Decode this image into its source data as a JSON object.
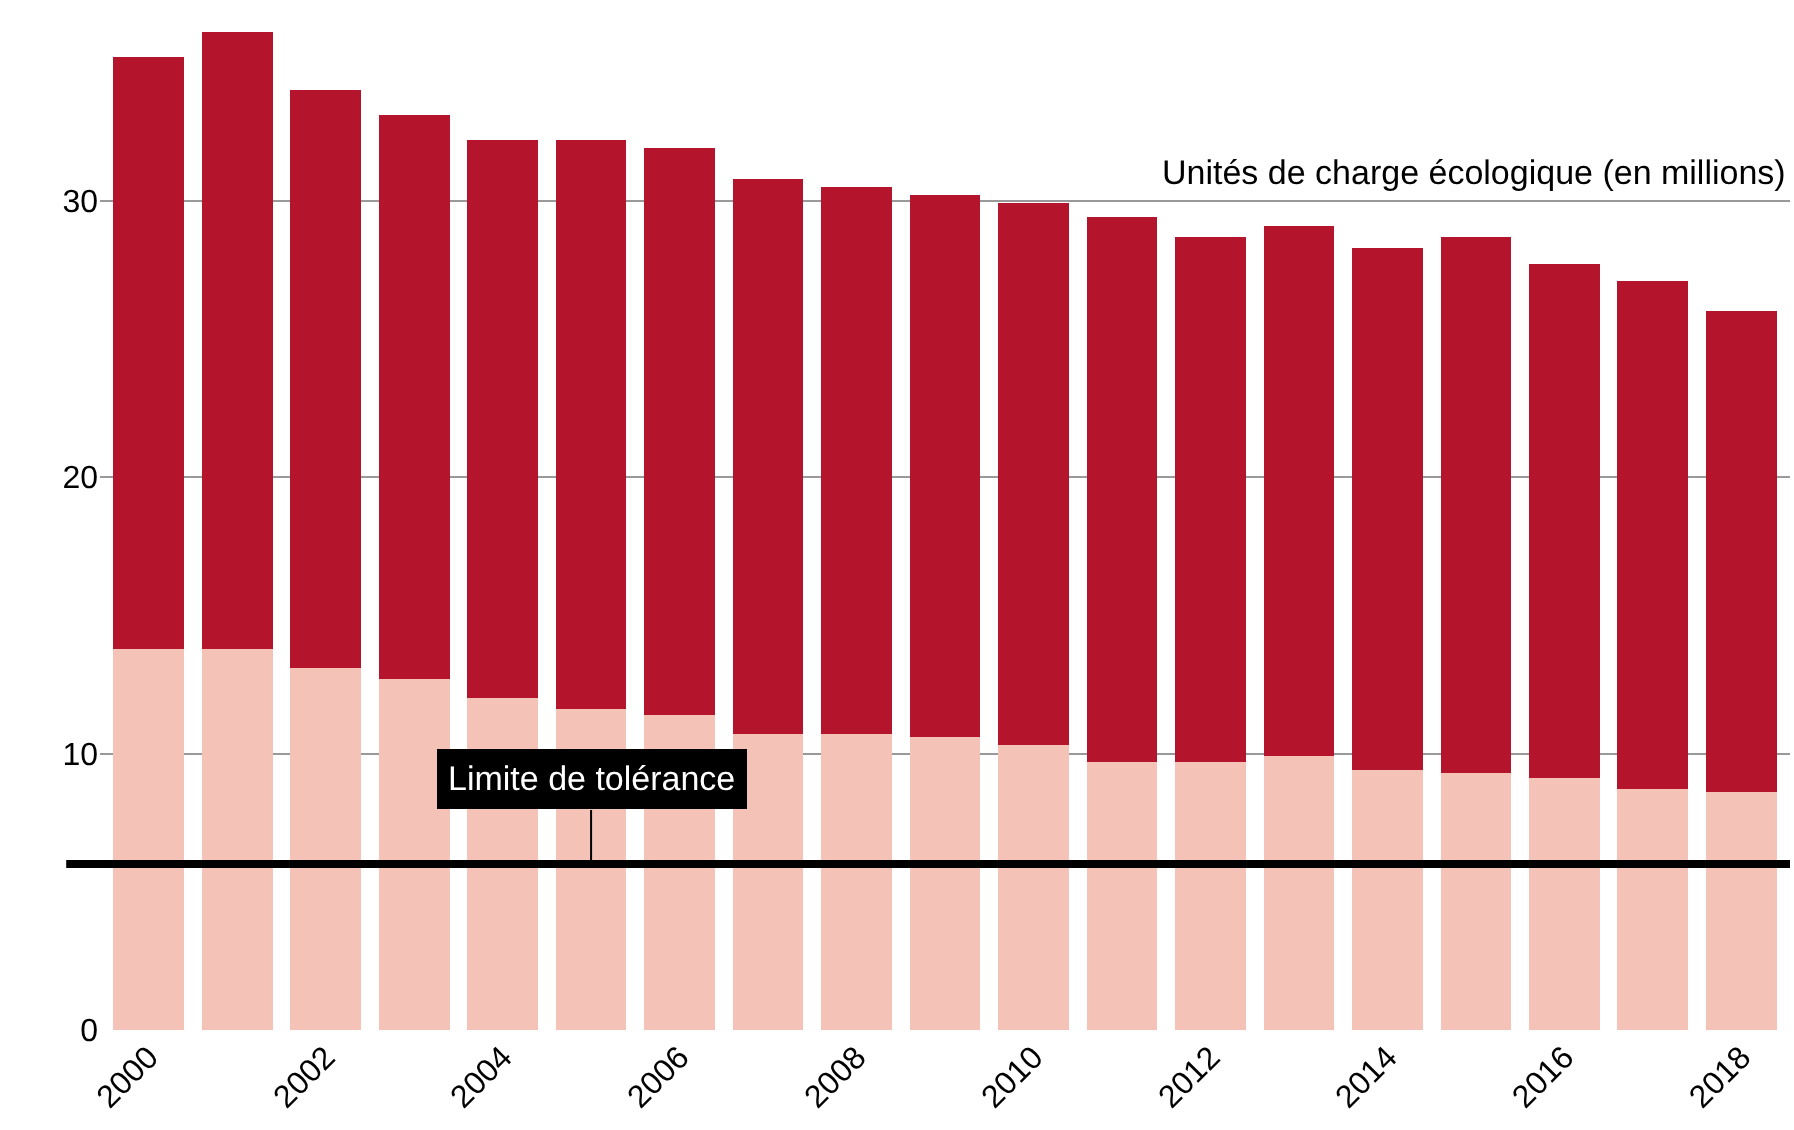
{
  "chart_data": {
    "type": "bar",
    "stacked": true,
    "ylabel": "Unités de charge écologique (en millions)",
    "categories": [
      "2000",
      null,
      "2002",
      null,
      "2004",
      null,
      "2006",
      null,
      "2008",
      null,
      "2010",
      null,
      "2012",
      null,
      "2014",
      null,
      "2016",
      null,
      "2018"
    ],
    "series": [
      {
        "color": "#f5c2b8",
        "values": [
          13.8,
          13.8,
          13.1,
          12.7,
          12.0,
          11.6,
          11.4,
          10.7,
          10.7,
          10.6,
          10.3,
          9.7,
          9.7,
          9.9,
          9.4,
          9.3,
          9.1,
          8.7,
          8.6
        ]
      },
      {
        "color": "#b4152d",
        "values": [
          21.4,
          22.3,
          20.9,
          20.4,
          20.2,
          20.6,
          20.5,
          20.1,
          19.8,
          19.6,
          19.6,
          19.7,
          19.0,
          19.2,
          18.9,
          19.4,
          18.6,
          18.4,
          17.4
        ]
      }
    ],
    "ylim": [
      0,
      36.1
    ],
    "yticks": [
      0,
      10,
      20,
      30
    ],
    "grid": "y",
    "ref_lines": [
      {
        "axis": "y",
        "value": 6,
        "label": "Limite de tolérance",
        "color": "#000000"
      }
    ]
  }
}
